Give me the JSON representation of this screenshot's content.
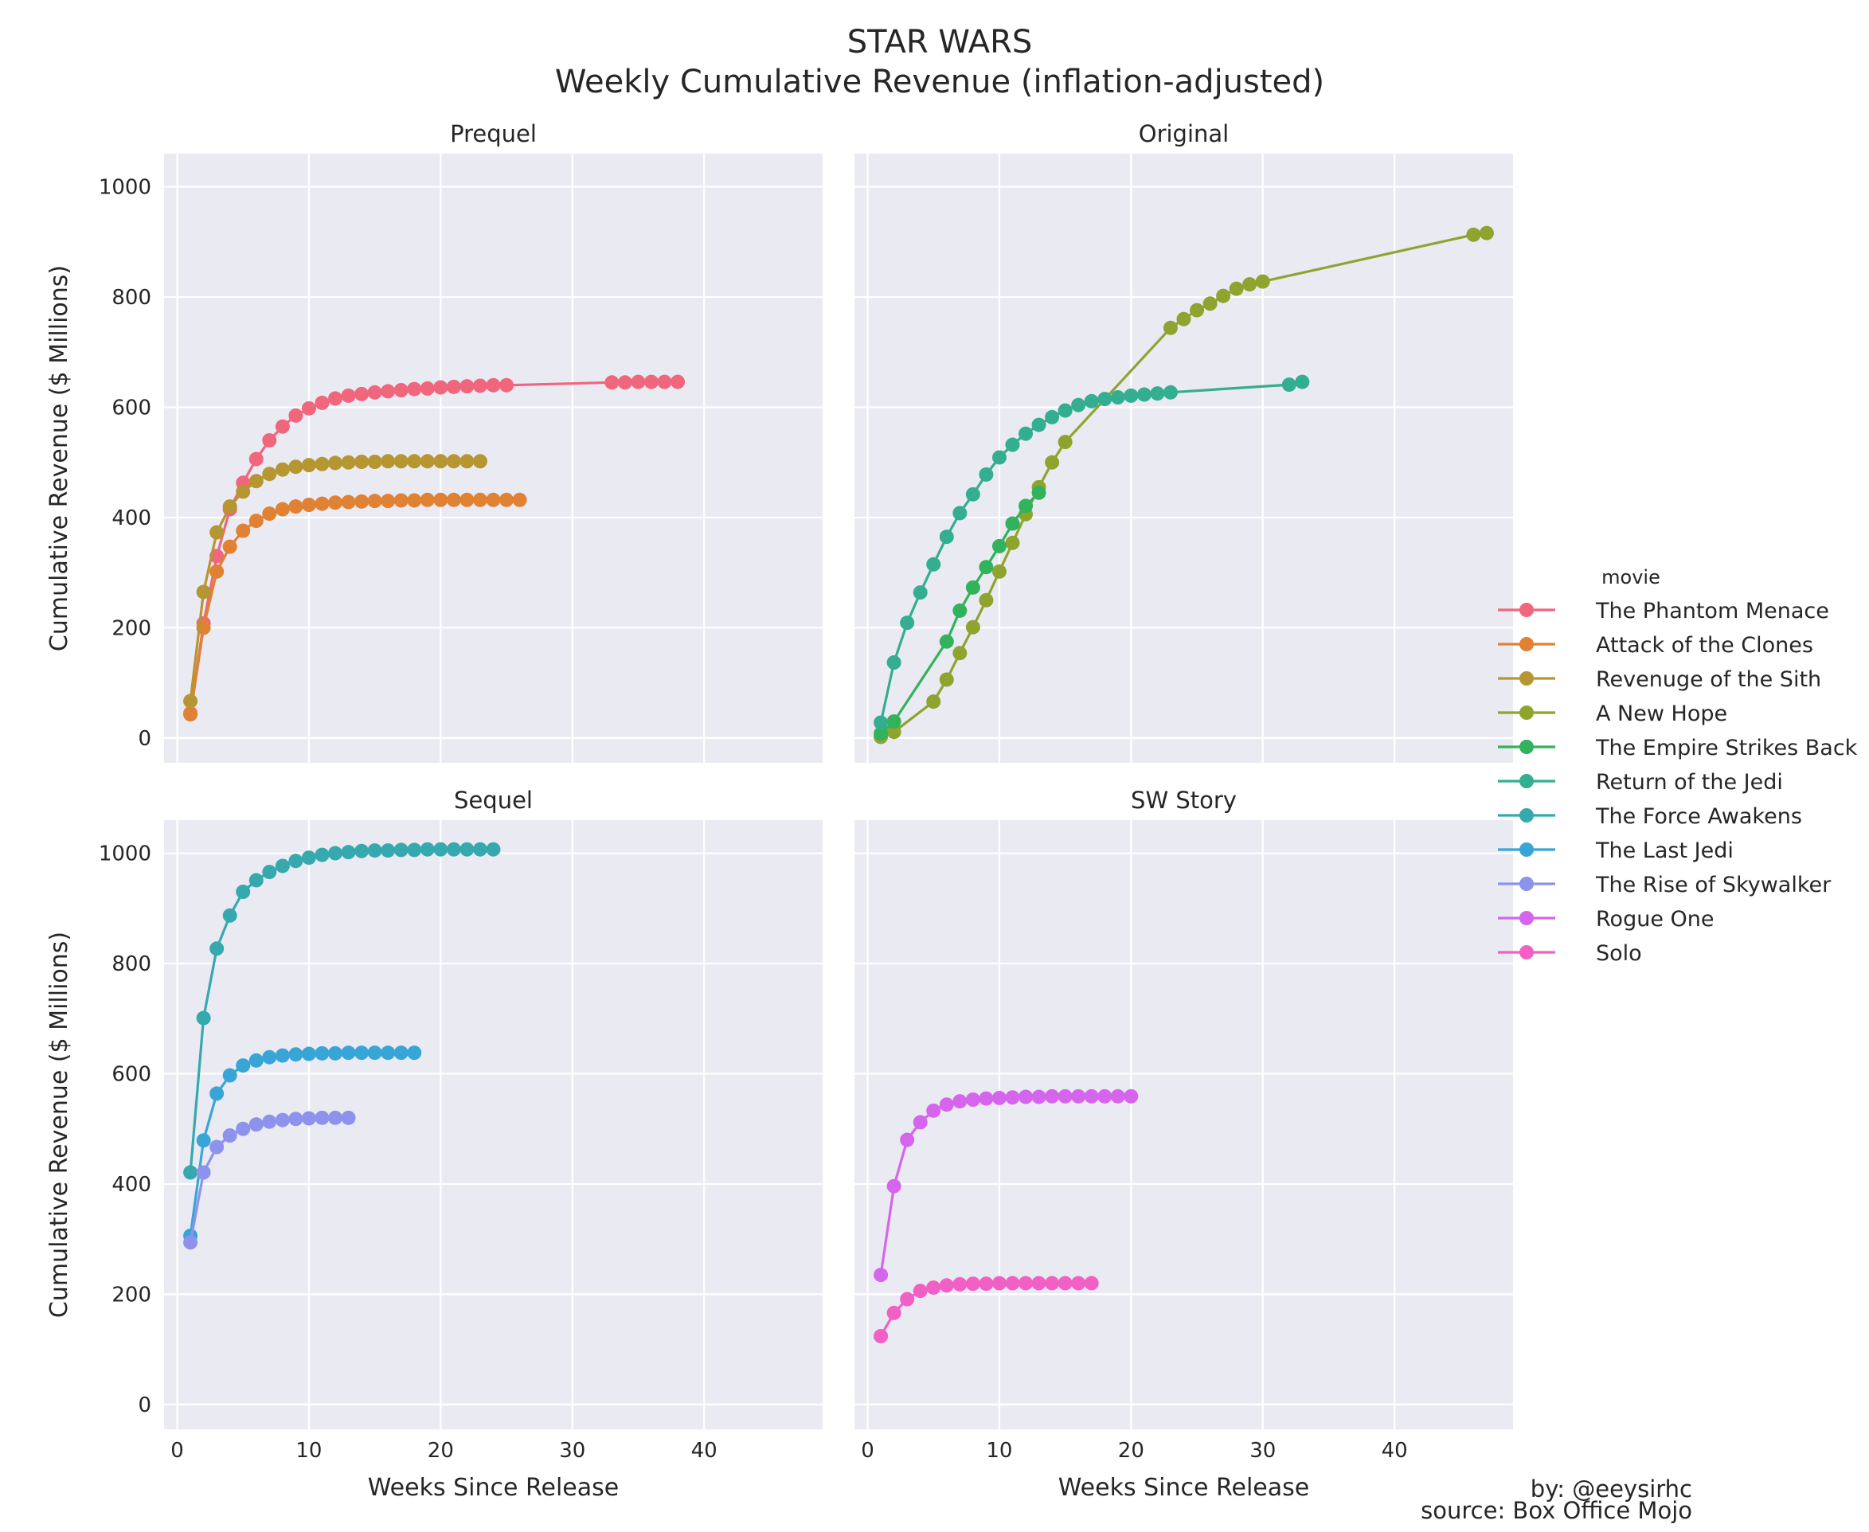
{
  "chart_data": {
    "type": "line",
    "title": "STAR WARS",
    "subtitle": "Weekly Cumulative Revenue (inflation-adjusted)",
    "xlabel": "Weeks Since Release",
    "ylabel": "Cumulative Revenue ($ Millions)",
    "xlim": [
      -1,
      49
    ],
    "ylim": [
      -45,
      1060
    ],
    "xticks": [
      0,
      10,
      20,
      30,
      40
    ],
    "yticks": [
      0,
      200,
      400,
      600,
      800,
      1000
    ],
    "grid": true,
    "legend_title": "movie",
    "legend_position": "right",
    "credits": [
      "by: @eeysirhc",
      "source: Box Office Mojo"
    ],
    "panels": [
      {
        "title": "Prequel",
        "series": [
          {
            "name": "The Phantom Menace",
            "color": "#f0667c",
            "x": [
              1,
              2,
              3,
              4,
              5,
              6,
              7,
              8,
              9,
              10,
              11,
              12,
              13,
              14,
              15,
              16,
              17,
              18,
              19,
              20,
              21,
              22,
              23,
              24,
              25,
              33,
              34,
              35,
              36,
              37,
              38
            ],
            "y": [
              45,
              208,
              330,
              415,
              463,
              506,
              540,
              565,
              585,
              598,
              608,
              616,
              621,
              624,
              627,
              629,
              631,
              633,
              634,
              636,
              637,
              638,
              639,
              640,
              640,
              645,
              645,
              646,
              646,
              646,
              646
            ]
          },
          {
            "name": "Attack of the Clones",
            "color": "#e08133",
            "x": [
              1,
              2,
              3,
              4,
              5,
              6,
              7,
              8,
              9,
              10,
              11,
              12,
              13,
              14,
              15,
              16,
              17,
              18,
              19,
              20,
              21,
              22,
              23,
              24,
              25,
              26
            ],
            "y": [
              43,
              200,
              302,
              347,
              376,
              394,
              407,
              415,
              420,
              423,
              425,
              427,
              428,
              429,
              430,
              430,
              431,
              431,
              432,
              432,
              432,
              432,
              432,
              432,
              432,
              432
            ]
          },
          {
            "name": "Revenuge of the Sith",
            "color": "#b59631",
            "x": [
              1,
              2,
              3,
              4,
              5,
              6,
              7,
              8,
              9,
              10,
              11,
              12,
              13,
              14,
              15,
              16,
              17,
              18,
              19,
              20,
              21,
              22,
              23
            ],
            "y": [
              67,
              265,
              373,
              420,
              447,
              466,
              479,
              487,
              492,
              495,
              497,
              499,
              500,
              501,
              501,
              502,
              502,
              502,
              502,
              502,
              502,
              502,
              502
            ]
          }
        ]
      },
      {
        "title": "Original",
        "series": [
          {
            "name": "A New Hope",
            "color": "#8ea42f",
            "x": [
              1,
              2,
              5,
              6,
              7,
              8,
              9,
              10,
              11,
              12,
              13,
              14,
              15,
              23,
              24,
              25,
              26,
              27,
              28,
              29,
              30,
              46,
              47
            ],
            "y": [
              2,
              11,
              66,
              106,
              154,
              201,
              250,
              302,
              354,
              406,
              455,
              500,
              537,
              744,
              760,
              776,
              788,
              802,
              815,
              823,
              828,
              913,
              916
            ]
          },
          {
            "name": "The Empire Strikes Back",
            "color": "#32b25b",
            "x": [
              1,
              2,
              6,
              7,
              8,
              9,
              10,
              11,
              12,
              13
            ],
            "y": [
              8,
              30,
              175,
              231,
              273,
              310,
              348,
              389,
              421,
              445
            ]
          },
          {
            "name": "Return of the Jedi",
            "color": "#33ae90",
            "x": [
              1,
              2,
              3,
              4,
              5,
              6,
              7,
              8,
              9,
              10,
              11,
              12,
              13,
              14,
              15,
              16,
              17,
              18,
              19,
              20,
              21,
              22,
              23,
              32,
              33
            ],
            "y": [
              28,
              137,
              209,
              264,
              315,
              365,
              408,
              442,
              478,
              509,
              532,
              552,
              568,
              582,
              594,
              604,
              611,
              615,
              618,
              621,
              623,
              625,
              627,
              641,
              646
            ]
          }
        ]
      },
      {
        "title": "Sequel",
        "series": [
          {
            "name": "The Force Awakens",
            "color": "#36a9ae",
            "x": [
              1,
              2,
              3,
              4,
              5,
              6,
              7,
              8,
              9,
              10,
              11,
              12,
              13,
              14,
              15,
              16,
              17,
              18,
              19,
              20,
              21,
              22,
              23,
              24
            ],
            "y": [
              421,
              701,
              827,
              887,
              930,
              951,
              966,
              977,
              986,
              992,
              997,
              1000,
              1002,
              1004,
              1005,
              1005,
              1006,
              1006,
              1007,
              1007,
              1007,
              1007,
              1007,
              1007
            ]
          },
          {
            "name": "The Last Jedi",
            "color": "#38a5d7",
            "x": [
              1,
              2,
              3,
              4,
              5,
              6,
              7,
              8,
              9,
              10,
              11,
              12,
              13,
              14,
              15,
              16,
              17,
              18
            ],
            "y": [
              306,
              479,
              564,
              597,
              615,
              624,
              630,
              633,
              635,
              636,
              637,
              637,
              638,
              638,
              638,
              638,
              638,
              638
            ]
          },
          {
            "name": "The Rise of Skywalker",
            "color": "#8d93ec",
            "x": [
              1,
              2,
              3,
              4,
              5,
              6,
              7,
              8,
              9,
              10,
              11,
              12,
              13
            ],
            "y": [
              294,
              421,
              467,
              488,
              500,
              508,
              513,
              516,
              518,
              519,
              520,
              520,
              520
            ]
          }
        ]
      },
      {
        "title": "SW Story",
        "series": [
          {
            "name": "Rogue One",
            "color": "#d565ec",
            "x": [
              1,
              2,
              3,
              4,
              5,
              6,
              7,
              8,
              9,
              10,
              11,
              12,
              13,
              14,
              15,
              16,
              17,
              18,
              19,
              20
            ],
            "y": [
              235,
              396,
              480,
              512,
              533,
              544,
              550,
              553,
              555,
              556,
              557,
              558,
              558,
              559,
              559,
              559,
              559,
              559,
              559,
              559
            ]
          },
          {
            "name": "Solo",
            "color": "#f25fc5",
            "x": [
              1,
              2,
              3,
              4,
              5,
              6,
              7,
              8,
              9,
              10,
              11,
              12,
              13,
              14,
              15,
              16,
              17
            ],
            "y": [
              124,
              166,
              191,
              206,
              212,
              216,
              218,
              219,
              219,
              220,
              220,
              220,
              220,
              220,
              220,
              220,
              220
            ]
          }
        ]
      }
    ]
  }
}
